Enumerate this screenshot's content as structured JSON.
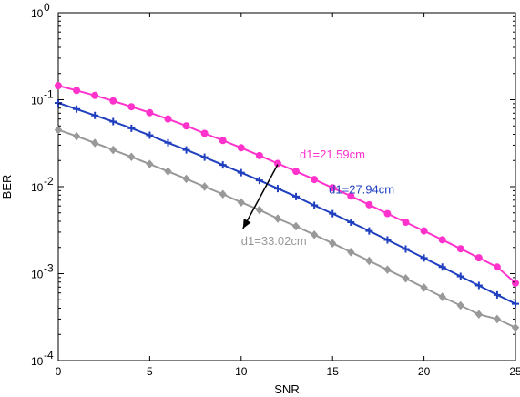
{
  "chart_data": {
    "type": "line",
    "xlabel": "SNR",
    "ylabel": "BER",
    "xlim": [
      0,
      25
    ],
    "ylim": [
      0.0001,
      1
    ],
    "yscale": "log",
    "grid": false,
    "x_ticks": [
      "0",
      "5",
      "10",
      "15",
      "20",
      "25"
    ],
    "y_ticks": [
      {
        "base": "10",
        "exp": "-4"
      },
      {
        "base": "10",
        "exp": "-3"
      },
      {
        "base": "10",
        "exp": "-2"
      },
      {
        "base": "10",
        "exp": "-1"
      },
      {
        "base": "10",
        "exp": "0"
      }
    ],
    "x": [
      0,
      1,
      2,
      3,
      4,
      5,
      6,
      7,
      8,
      9,
      10,
      11,
      12,
      13,
      14,
      15,
      16,
      17,
      18,
      19,
      20,
      21,
      22,
      23,
      24,
      25
    ],
    "series": [
      {
        "label": "d1=21.59cm",
        "color": "#ff33cc",
        "marker": "circle",
        "values": [
          0.145,
          0.128,
          0.112,
          0.097,
          0.083,
          0.071,
          0.06,
          0.05,
          0.041,
          0.034,
          0.028,
          0.0228,
          0.0185,
          0.015,
          0.0121,
          0.0097,
          0.0078,
          0.0062,
          0.0049,
          0.0039,
          0.0031,
          0.00245,
          0.00193,
          0.00152,
          0.00119,
          0.00078
        ]
      },
      {
        "label": "d1=27.94cm",
        "color": "#1f3fbf",
        "marker": "plus",
        "values": [
          0.092,
          0.078,
          0.066,
          0.056,
          0.047,
          0.039,
          0.032,
          0.0265,
          0.0218,
          0.0178,
          0.0145,
          0.0118,
          0.0095,
          0.0077,
          0.0061,
          0.0049,
          0.0039,
          0.0031,
          0.00244,
          0.00192,
          0.00151,
          0.00119,
          0.00093,
          0.00073,
          0.00057,
          0.00045
        ]
      },
      {
        "label": "d1=33.02cm",
        "color": "#999999",
        "marker": "diamond",
        "values": [
          0.045,
          0.038,
          0.0318,
          0.0265,
          0.022,
          0.0182,
          0.015,
          0.0123,
          0.01,
          0.0082,
          0.0066,
          0.0054,
          0.0043,
          0.0035,
          0.0028,
          0.00223,
          0.00177,
          0.0014,
          0.00111,
          0.00088,
          0.00069,
          0.00054,
          0.00043,
          0.00034,
          0.0003,
          0.00024
        ]
      }
    ],
    "annotations": [
      {
        "text": "d1=21.59cm",
        "color": "#ff33cc",
        "x": 13.2,
        "y": 0.021
      },
      {
        "text": "d1=27.94cm",
        "color": "#1f3fbf",
        "x": 14.8,
        "y": 0.0083
      },
      {
        "text": "d1=33.02cm",
        "color": "#999999",
        "x": 10.0,
        "y": 0.00215
      }
    ],
    "arrow": {
      "x_start": 12.0,
      "y_start": 0.018,
      "x_end": 10.1,
      "y_end": 0.0033,
      "color": "#000000"
    }
  }
}
